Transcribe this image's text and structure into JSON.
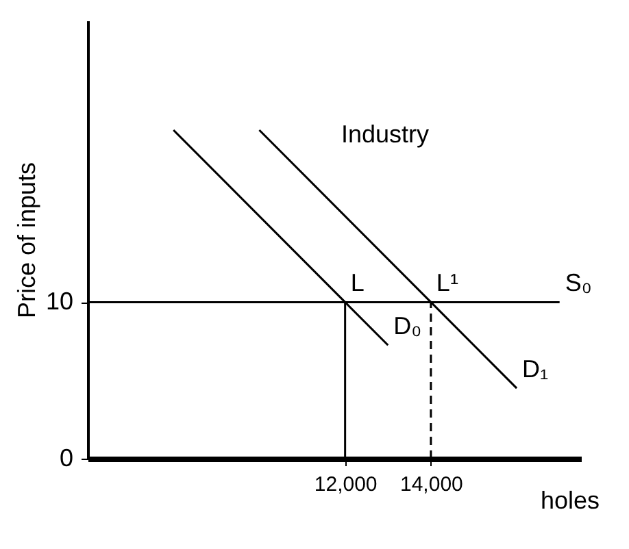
{
  "chart_data": {
    "type": "line",
    "xlabel": "holes",
    "ylabel": "Price of inputs",
    "xlim": [
      6000,
      17500
    ],
    "ylim": [
      0,
      28
    ],
    "xticks": [
      {
        "value": 12000,
        "label": "12,000"
      },
      {
        "value": 14000,
        "label": "14,000"
      }
    ],
    "yticks": [
      0,
      10
    ],
    "grid": false,
    "marker": "none",
    "series": [
      {
        "color": "#000000",
        "x": [
          8000,
          12000,
          13000
        ],
        "values": [
          21,
          10,
          7.25
        ]
      },
      {
        "color": "#000000",
        "x": [
          10000,
          14000,
          16000
        ],
        "values": [
          21,
          10,
          4.5
        ]
      },
      {
        "color": "#000000",
        "x": [
          6000,
          17000
        ],
        "values": [
          10,
          10
        ]
      },
      {
        "color": "#000000",
        "x": [
          12000,
          12000
        ],
        "values": [
          0,
          10
        ]
      },
      {
        "color": "#000000",
        "x": [
          14000,
          14000
        ],
        "values": [
          0,
          10
        ],
        "line_style": "dashed"
      }
    ],
    "annotations": [
      "Industry",
      {
        "text": "L",
        "x": 12000,
        "y": 10
      },
      {
        "text": "L¹",
        "x": 14000,
        "y": 10
      },
      {
        "text": "S₀",
        "x": 17000,
        "y": 10
      },
      {
        "text": "D₀",
        "x": 13000,
        "y": 7.25
      },
      {
        "text": "D₁",
        "x": 16000,
        "y": 4.5
      }
    ]
  }
}
